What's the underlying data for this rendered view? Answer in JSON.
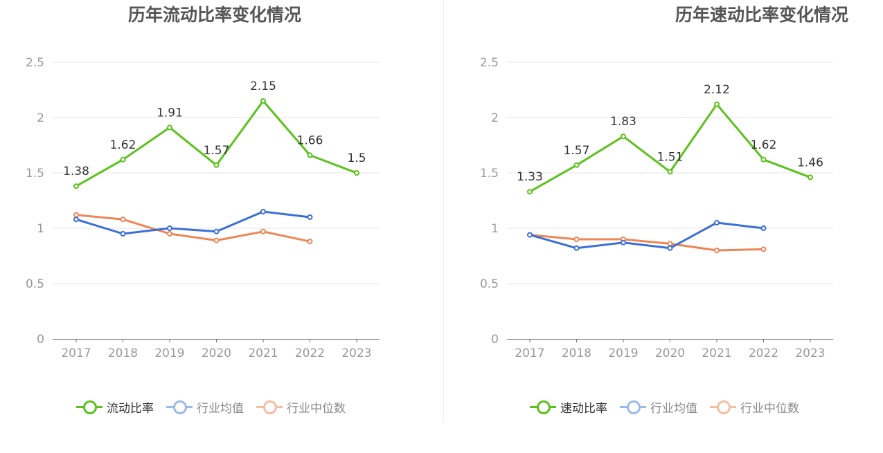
{
  "chart_data": [
    {
      "type": "line",
      "title": "历年流动比率变化情况",
      "categories": [
        "2017",
        "2018",
        "2019",
        "2020",
        "2021",
        "2022",
        "2023"
      ],
      "ylim": [
        0,
        2.5
      ],
      "yticks": [
        "0",
        "0.5",
        "1",
        "1.5",
        "2",
        "2.5"
      ],
      "grid": true,
      "legend_position": "bottom",
      "series": [
        {
          "name": "流动比率",
          "color": "#5ac21b",
          "values": [
            1.38,
            1.62,
            1.91,
            1.57,
            2.15,
            1.66,
            1.5
          ],
          "labels": [
            "1.38",
            "1.62",
            "1.91",
            "1.57",
            "2.15",
            "1.66",
            "1.5"
          ],
          "legend_active": true
        },
        {
          "name": "行业均值",
          "color": "#3a6fd8",
          "values": [
            1.08,
            0.95,
            1.0,
            0.97,
            1.15,
            1.1,
            null
          ],
          "legend_active": false
        },
        {
          "name": "行业中位数",
          "color": "#ee8555",
          "values": [
            1.12,
            1.08,
            0.95,
            0.89,
            0.97,
            0.88,
            null
          ],
          "legend_active": false
        }
      ]
    },
    {
      "type": "line",
      "title": "历年速动比率变化情况",
      "categories": [
        "2017",
        "2018",
        "2019",
        "2020",
        "2021",
        "2022",
        "2023"
      ],
      "ylim": [
        0,
        2.5
      ],
      "yticks": [
        "0",
        "0.5",
        "1",
        "1.5",
        "2",
        "2.5"
      ],
      "grid": true,
      "legend_position": "bottom",
      "series": [
        {
          "name": "速动比率",
          "color": "#5ac21b",
          "values": [
            1.33,
            1.57,
            1.83,
            1.51,
            2.12,
            1.62,
            1.46
          ],
          "labels": [
            "1.33",
            "1.57",
            "1.83",
            "1.51",
            "2.12",
            "1.62",
            "1.46"
          ],
          "legend_active": true
        },
        {
          "name": "行业均值",
          "color": "#3a6fd8",
          "values": [
            0.94,
            0.82,
            0.87,
            0.82,
            1.05,
            1.0,
            null
          ],
          "legend_active": false
        },
        {
          "name": "行业中位数",
          "color": "#ee8555",
          "values": [
            0.94,
            0.9,
            0.9,
            0.86,
            0.8,
            0.81,
            null
          ],
          "legend_active": false
        }
      ]
    }
  ],
  "legend_inactive_colors": {
    "行业均值": "#9cb9ee",
    "行业中位数": "#f6bda3"
  }
}
